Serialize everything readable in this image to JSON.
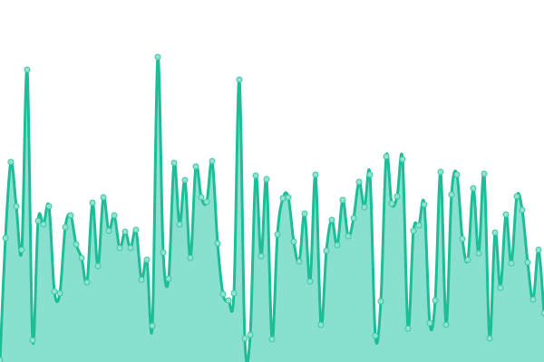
{
  "chart_data": {
    "type": "area",
    "title": "",
    "xlabel": "",
    "ylabel": "",
    "x_axis_visible": false,
    "y_axis_visible": false,
    "grid": false,
    "legend": "none",
    "curve": "smooth",
    "markers": true,
    "ylim": [
      0,
      400
    ],
    "colors": {
      "line": "#1dbd97",
      "fill": "#8ae0cf",
      "marker_fill": "#8fe3d0",
      "marker_stroke": "#3cc8a4"
    },
    "series": [
      {
        "values": [
          2,
          137,
          221,
          172,
          124,
          323,
          24,
          156,
          152,
          172,
          78,
          76,
          149,
          162,
          130,
          115,
          88,
          176,
          106,
          182,
          145,
          162,
          126,
          144,
          126,
          146,
          91,
          113,
          40,
          337,
          121,
          92,
          220,
          152,
          201,
          115,
          216,
          182,
          177,
          222,
          131,
          75,
          68,
          76,
          312,
          26,
          30,
          206,
          117,
          202,
          25,
          141,
          181,
          182,
          133,
          111,
          164,
          89,
          207,
          41,
          123,
          157,
          129,
          179,
          139,
          159,
          199,
          171,
          207,
          29,
          67,
          227,
          175,
          183,
          224,
          37,
          145,
          151,
          174,
          43,
          68,
          210,
          41,
          185,
          207,
          136,
          113,
          192,
          120,
          208,
          26,
          143,
          82,
          163,
          109,
          183,
          168,
          110,
          69,
          124,
          54
        ]
      }
    ]
  }
}
